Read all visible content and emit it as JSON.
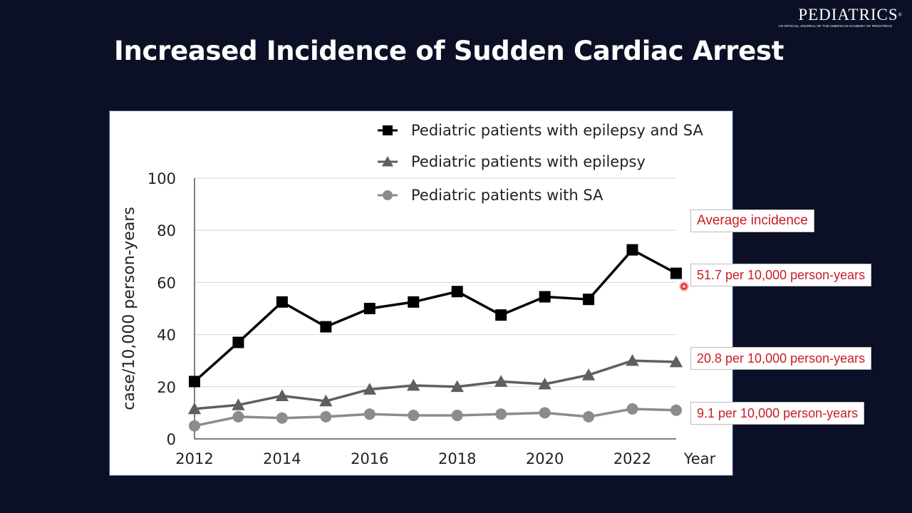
{
  "logo": {
    "name": "PEDIATRICS",
    "registered": "®",
    "tagline": "AN OFFICIAL JOURNAL OF THE AMERICAN ACADEMY OF PEDIATRICS"
  },
  "slide_title": "Increased Incidence of Sudden Cardiac Arrest",
  "callouts": {
    "heading": "Average incidence",
    "items": [
      "51.7 per 10,000 person-years",
      "20.8 per 10,000 person-years",
      "9.1 per 10,000 person-years"
    ]
  },
  "colors": {
    "background": "#0b1026",
    "callout_text": "#c81d25",
    "series_epilepsy_sa": "#000000",
    "series_epilepsy": "#5f5f5f",
    "series_sa": "#8c8c8c"
  },
  "chart_data": {
    "type": "line",
    "title": "",
    "xlabel": "Year",
    "ylabel": "case/10,000 person-years",
    "x": [
      2012,
      2013,
      2014,
      2015,
      2016,
      2017,
      2018,
      2019,
      2020,
      2021,
      2022,
      2023
    ],
    "x_ticks": [
      "2012",
      "2014",
      "2016",
      "2018",
      "2020",
      "2022"
    ],
    "ylim": [
      0,
      100
    ],
    "y_ticks": [
      "0",
      "20",
      "40",
      "60",
      "80",
      "100"
    ],
    "grid": "horizontal",
    "legend_position": "top-right",
    "series": [
      {
        "name": "Pediatric patients with epilepsy and SA",
        "marker": "square",
        "values": [
          22,
          37,
          52.5,
          43,
          50,
          52.5,
          56.5,
          47.5,
          54.5,
          53.5,
          72.5,
          63.5
        ]
      },
      {
        "name": "Pediatric patients with epilepsy",
        "marker": "triangle",
        "values": [
          11.5,
          13,
          16.5,
          14.5,
          19,
          20.5,
          20,
          22,
          21,
          24.5,
          30,
          29.5
        ]
      },
      {
        "name": "Pediatric patients with SA",
        "marker": "circle",
        "values": [
          5,
          8.5,
          8,
          8.5,
          9.5,
          9,
          9,
          9.5,
          10,
          8.5,
          11.5,
          11
        ]
      }
    ]
  }
}
